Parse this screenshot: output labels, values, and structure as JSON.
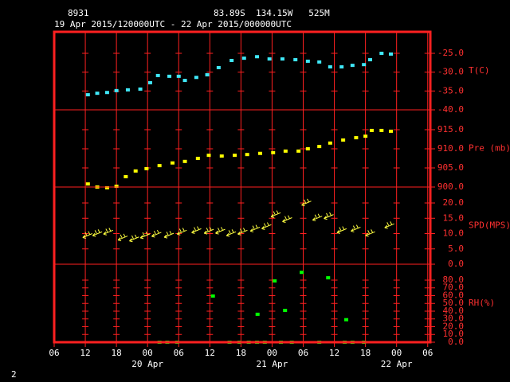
{
  "header": {
    "station": "8931",
    "location": "83.89S  134.15W   525M",
    "period": "19 Apr 2015/120000UTC - 22 Apr 2015/000000UTC"
  },
  "footer": "2",
  "chart_data": [
    {
      "type": "scatter",
      "marker": "square",
      "color": "#40e8f8",
      "ylabel": "T(C)",
      "xlim": [
        0,
        72.5
      ],
      "ylim": [
        -40,
        -19.3
      ],
      "yticks": [
        {
          "value": -40,
          "label": "-40.0"
        },
        {
          "value": -35,
          "label": "-35.0"
        },
        {
          "value": -30,
          "label": "-30.0"
        },
        {
          "value": -25,
          "label": "-25.0"
        }
      ],
      "x": [
        6.5,
        8.3,
        10.2,
        12.0,
        14.2,
        16.6,
        18.5,
        20.0,
        22.2,
        24.0,
        25.2,
        27.4,
        29.5,
        31.7,
        34.2,
        36.6,
        39.1,
        41.5,
        44.0,
        46.5,
        48.9,
        51.1,
        53.2,
        55.4,
        57.5,
        59.7,
        60.9,
        63.1,
        64.9
      ],
      "values": [
        -36.0,
        -35.6,
        -35.4,
        -34.9,
        -34.7,
        -34.5,
        -32.8,
        -30.9,
        -31.1,
        -31.1,
        -32.2,
        -31.4,
        -30.7,
        -28.8,
        -26.9,
        -26.3,
        -25.9,
        -26.5,
        -26.5,
        -26.7,
        -27.1,
        -27.3,
        -28.6,
        -28.6,
        -28.2,
        -28.0,
        -26.7,
        -25.0,
        -25.2
      ]
    },
    {
      "type": "scatter",
      "marker": "square",
      "color": "#ffff00",
      "ylabel": "Pre (mb)",
      "xlim": [
        0,
        72.5
      ],
      "ylim": [
        900,
        920.2
      ],
      "yticks": [
        {
          "value": 900,
          "label": "900.0"
        },
        {
          "value": 905,
          "label": "905.0"
        },
        {
          "value": 910,
          "label": "910.0"
        },
        {
          "value": 915,
          "label": "915.0"
        }
      ],
      "x": [
        6.5,
        8.3,
        10.2,
        12.0,
        13.8,
        15.7,
        17.8,
        20.3,
        22.8,
        25.2,
        27.7,
        29.8,
        32.3,
        34.8,
        37.2,
        39.7,
        42.2,
        44.6,
        47.1,
        48.9,
        51.1,
        53.2,
        55.7,
        58.2,
        60.0,
        61.2,
        63.1,
        64.9
      ],
      "values": [
        900.8,
        900.0,
        899.8,
        900.2,
        902.7,
        904.2,
        904.8,
        905.6,
        906.3,
        906.7,
        907.5,
        908.3,
        908.1,
        908.3,
        908.5,
        908.8,
        909.0,
        909.4,
        909.4,
        910.0,
        910.6,
        911.5,
        912.3,
        912.9,
        913.3,
        914.8,
        914.8,
        914.6
      ]
    },
    {
      "type": "scatter",
      "marker": "barb",
      "color": "#ffff40",
      "ylabel": "SPD(MPS)",
      "xlim": [
        0,
        72.5
      ],
      "ylim": [
        0,
        25.2
      ],
      "yticks": [
        {
          "value": 0,
          "label": "0.0"
        },
        {
          "value": 5,
          "label": "5.0"
        },
        {
          "value": 10,
          "label": "10.0"
        },
        {
          "value": 15,
          "label": "15.0"
        },
        {
          "value": 20,
          "label": "20.0"
        }
      ],
      "x": [
        5.5,
        7.4,
        9.5,
        12.3,
        14.5,
        16.6,
        18.8,
        21.2,
        23.7,
        26.5,
        28.9,
        31.1,
        33.2,
        35.4,
        37.8,
        40.0,
        41.8,
        44.0,
        47.7,
        49.8,
        52.0,
        54.5,
        57.2,
        60.0,
        63.7
      ],
      "values": [
        8.7,
        9.3,
        9.8,
        7.9,
        7.6,
        8.6,
        9.1,
        8.8,
        9.8,
        10.3,
        10.1,
        10.1,
        9.3,
        9.8,
        10.8,
        11.6,
        15.5,
        13.9,
        19.3,
        14.4,
        14.9,
        10.3,
        10.8,
        9.3,
        11.9
      ]
    },
    {
      "type": "scatter",
      "marker": "square",
      "color": "#00ff00",
      "ylabel": "RH(%)",
      "xlim": [
        0,
        72.5
      ],
      "ylim": [
        0,
        100.5
      ],
      "yticks": [
        {
          "value": 0,
          "label": "0.0"
        },
        {
          "value": 10,
          "label": "10.0"
        },
        {
          "value": 20,
          "label": "20.0"
        },
        {
          "value": 30,
          "label": "30.0"
        },
        {
          "value": 40,
          "label": "40.0"
        },
        {
          "value": 50,
          "label": "50.0"
        },
        {
          "value": 60,
          "label": "60.0"
        },
        {
          "value": 70,
          "label": "70.0"
        },
        {
          "value": 80,
          "label": "80.0"
        }
      ],
      "x": [
        20.3,
        21.8,
        23.7,
        30.6,
        33.8,
        35.7,
        37.5,
        39.1,
        39.2,
        40.6,
        42.5,
        43.7,
        44.5,
        45.8,
        47.7,
        51.1,
        52.8,
        56.0,
        56.3,
        57.5,
        59.7
      ],
      "values": [
        0,
        0,
        0,
        59.5,
        0,
        0,
        0,
        0,
        36,
        0,
        79,
        0,
        41,
        0,
        90,
        0,
        83,
        0,
        29,
        0,
        0
      ],
      "xticks": [
        {
          "value": 0,
          "label": "06"
        },
        {
          "value": 6,
          "label": "12"
        },
        {
          "value": 12,
          "label": "18"
        },
        {
          "value": 18,
          "label": "00"
        },
        {
          "value": 24,
          "label": "06"
        },
        {
          "value": 30,
          "label": "12"
        },
        {
          "value": 36,
          "label": "18"
        },
        {
          "value": 42,
          "label": "00"
        },
        {
          "value": 48,
          "label": "06"
        },
        {
          "value": 54,
          "label": "12"
        },
        {
          "value": 60,
          "label": "18"
        },
        {
          "value": 66,
          "label": "00"
        },
        {
          "value": 72,
          "label": "06"
        }
      ],
      "xdates": [
        {
          "value": 18,
          "label": "20 Apr"
        },
        {
          "value": 42,
          "label": "21 Apr"
        },
        {
          "value": 66,
          "label": "22 Apr"
        }
      ]
    }
  ]
}
